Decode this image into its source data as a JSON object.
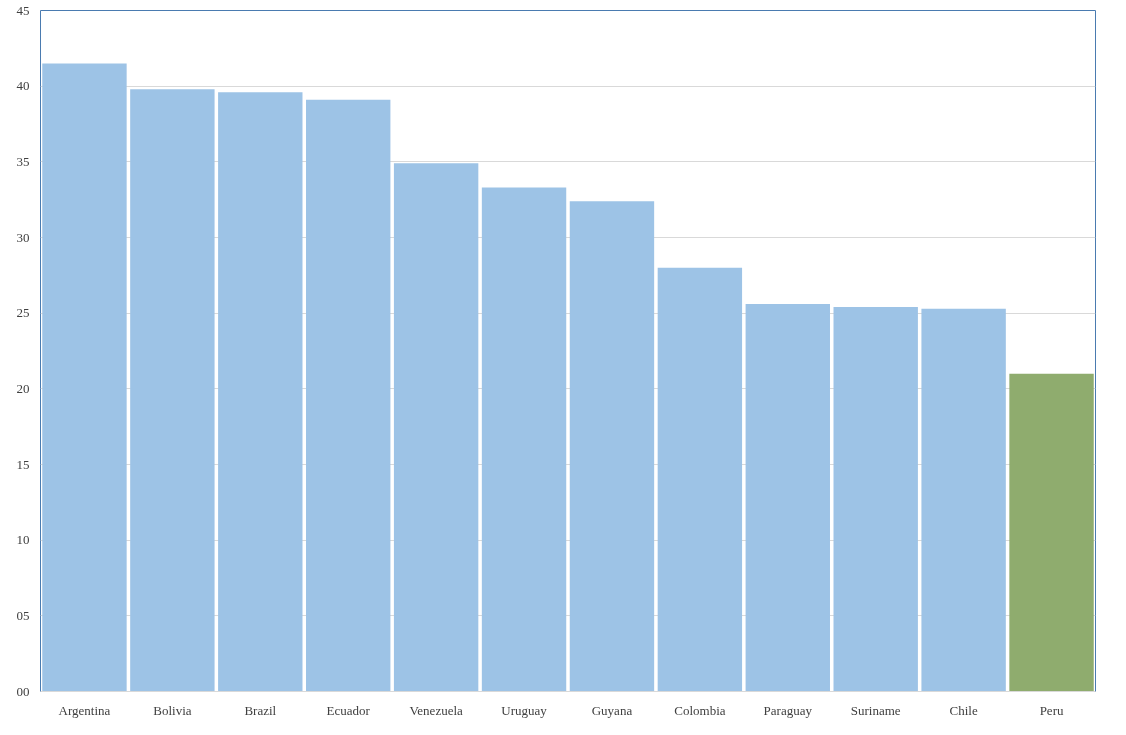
{
  "chart_data": {
    "type": "bar",
    "categories": [
      "Argentina",
      "Bolivia",
      "Brazil",
      "Ecuador",
      "Venezuela",
      "Uruguay",
      "Guyana",
      "Colombia",
      "Paraguay",
      "Suriname",
      "Chile",
      "Peru"
    ],
    "values": [
      41.5,
      39.8,
      39.6,
      39.1,
      34.9,
      33.3,
      32.4,
      28.0,
      25.6,
      25.4,
      25.3,
      21.0
    ],
    "colors": [
      "#9dc3e6",
      "#9dc3e6",
      "#9dc3e6",
      "#9dc3e6",
      "#9dc3e6",
      "#9dc3e6",
      "#9dc3e6",
      "#9dc3e6",
      "#9dc3e6",
      "#9dc3e6",
      "#9dc3e6",
      "#8fac6e"
    ],
    "ylim": [
      0,
      45
    ],
    "yticks": [
      {
        "value": 0,
        "label": "00"
      },
      {
        "value": 5,
        "label": "05"
      },
      10,
      15,
      20,
      25,
      30,
      35,
      40,
      45
    ],
    "grid": "y"
  }
}
